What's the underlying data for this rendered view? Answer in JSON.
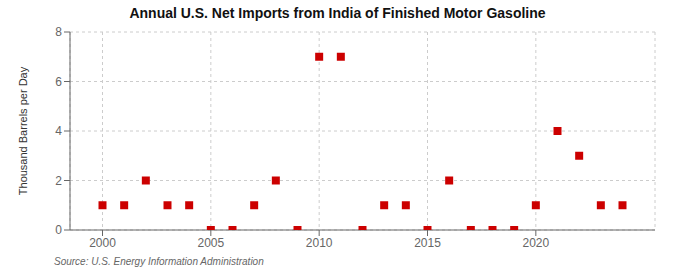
{
  "chart_data": {
    "type": "scatter",
    "title": "Annual U.S. Net Imports from India of Finished Motor Gasoline",
    "ylabel": "Thousand Barrels per Day",
    "annotations": [
      "Source: U.S. Energy Information Administration"
    ],
    "x": [
      2000,
      2001,
      2002,
      2003,
      2004,
      2005,
      2006,
      2007,
      2008,
      2009,
      2010,
      2011,
      2012,
      2013,
      2014,
      2015,
      2016,
      2017,
      2018,
      2019,
      2020,
      2021,
      2022,
      2023,
      2024
    ],
    "values": [
      1,
      1,
      2,
      1,
      1,
      0,
      0,
      1,
      2,
      0,
      7,
      7,
      0,
      1,
      1,
      0,
      2,
      0,
      0,
      0,
      1,
      4,
      3,
      1,
      1
    ],
    "color": "#cc0000",
    "marker": "square",
    "xlim": [
      1998.5,
      2025.5
    ],
    "ylim": [
      0,
      8
    ],
    "xticks": [
      2000,
      2005,
      2010,
      2015,
      2020
    ],
    "yticks": [
      0,
      2,
      4,
      6,
      8
    ],
    "grid": true
  }
}
